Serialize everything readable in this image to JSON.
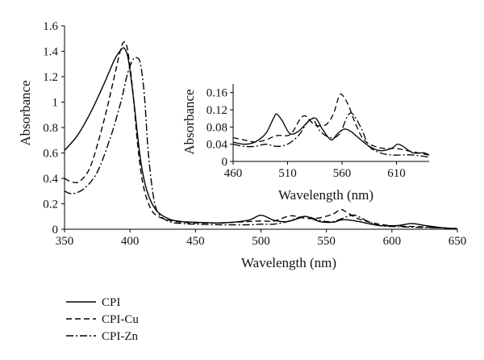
{
  "chart_data": [
    {
      "id": "main",
      "type": "line",
      "xlabel": "Wavelength (nm)",
      "ylabel": "Absorbance",
      "xlim": [
        350,
        650
      ],
      "ylim": [
        0,
        1.6
      ],
      "xticks": [
        350,
        400,
        450,
        500,
        550,
        600,
        650
      ],
      "yticks": [
        0,
        0.2,
        0.4,
        0.6,
        0.8,
        1,
        1.2,
        1.4,
        1.6
      ],
      "grid": false,
      "series": [
        {
          "name": "CPI",
          "style": "solid",
          "color": "#000000",
          "x": [
            350,
            360,
            370,
            380,
            388,
            393,
            396,
            399,
            403,
            408,
            413,
            420,
            430,
            440,
            450,
            470,
            490,
            500,
            510,
            520,
            530,
            535,
            545,
            555,
            560,
            565,
            575,
            590,
            605,
            615,
            625,
            640,
            650
          ],
          "y": [
            0.62,
            0.74,
            0.92,
            1.14,
            1.33,
            1.41,
            1.42,
            1.32,
            1.0,
            0.55,
            0.3,
            0.15,
            0.08,
            0.06,
            0.055,
            0.05,
            0.07,
            0.11,
            0.07,
            0.06,
            0.09,
            0.1,
            0.06,
            0.055,
            0.07,
            0.075,
            0.06,
            0.03,
            0.03,
            0.045,
            0.03,
            0.01,
            0.005
          ]
        },
        {
          "name": "CPI-Cu",
          "style": "dashed",
          "color": "#000000",
          "x": [
            350,
            356,
            362,
            370,
            380,
            388,
            392,
            395,
            398,
            402,
            406,
            410,
            415,
            420,
            430,
            440,
            450,
            470,
            490,
            500,
            510,
            520,
            525,
            535,
            545,
            555,
            561,
            566,
            575,
            590,
            605,
            620,
            640,
            650
          ],
          "y": [
            0.4,
            0.37,
            0.38,
            0.5,
            0.85,
            1.2,
            1.38,
            1.47,
            1.42,
            1.1,
            0.65,
            0.35,
            0.18,
            0.11,
            0.07,
            0.055,
            0.05,
            0.05,
            0.06,
            0.065,
            0.065,
            0.1,
            0.105,
            0.085,
            0.09,
            0.12,
            0.155,
            0.13,
            0.08,
            0.04,
            0.025,
            0.02,
            0.01,
            0.005
          ]
        },
        {
          "name": "CPI-Zn",
          "style": "dashdot",
          "color": "#000000",
          "x": [
            350,
            356,
            365,
            375,
            385,
            393,
            398,
            402,
            405,
            408,
            411,
            414,
            418,
            422,
            430,
            440,
            450,
            470,
            490,
            500,
            510,
            520,
            533,
            545,
            555,
            566,
            572,
            580,
            590,
            605,
            620,
            640,
            650
          ],
          "y": [
            0.3,
            0.28,
            0.32,
            0.45,
            0.72,
            1.0,
            1.22,
            1.33,
            1.35,
            1.3,
            1.05,
            0.6,
            0.25,
            0.12,
            0.06,
            0.045,
            0.04,
            0.035,
            0.035,
            0.04,
            0.04,
            0.06,
            0.1,
            0.07,
            0.06,
            0.1,
            0.11,
            0.07,
            0.03,
            0.02,
            0.015,
            0.01,
            0.005
          ]
        }
      ]
    },
    {
      "id": "inset",
      "type": "line",
      "xlabel": "Wavelength (nm)",
      "ylabel": "Absorbance",
      "xlim": [
        460,
        640
      ],
      "ylim": [
        0,
        0.18
      ],
      "xticks": [
        460,
        510,
        560,
        610
      ],
      "yticks": [
        0,
        0.04,
        0.08,
        0.12,
        0.16
      ],
      "grid": false,
      "series": [
        {
          "name": "CPI",
          "style": "solid",
          "color": "#000000",
          "x": [
            460,
            470,
            480,
            490,
            497,
            500,
            505,
            512,
            520,
            530,
            536,
            542,
            550,
            556,
            562,
            568,
            575,
            585,
            595,
            605,
            611,
            616,
            625,
            635,
            640
          ],
          "y": [
            0.045,
            0.04,
            0.045,
            0.065,
            0.1,
            0.11,
            0.095,
            0.065,
            0.07,
            0.095,
            0.1,
            0.075,
            0.05,
            0.065,
            0.075,
            0.07,
            0.055,
            0.035,
            0.025,
            0.03,
            0.04,
            0.035,
            0.02,
            0.02,
            0.015
          ]
        },
        {
          "name": "CPI-Cu",
          "style": "dashed",
          "color": "#000000",
          "x": [
            460,
            470,
            480,
            490,
            500,
            510,
            515,
            522,
            527,
            535,
            545,
            552,
            557,
            560,
            566,
            572,
            580,
            590,
            600,
            610,
            620,
            630,
            640
          ],
          "y": [
            0.055,
            0.05,
            0.045,
            0.05,
            0.06,
            0.06,
            0.07,
            0.1,
            0.105,
            0.085,
            0.085,
            0.11,
            0.15,
            0.155,
            0.13,
            0.09,
            0.05,
            0.035,
            0.03,
            0.03,
            0.025,
            0.02,
            0.015
          ]
        },
        {
          "name": "CPI-Zn",
          "style": "dashdot",
          "color": "#000000",
          "x": [
            460,
            470,
            480,
            490,
            500,
            510,
            520,
            528,
            533,
            540,
            550,
            558,
            565,
            570,
            578,
            585,
            595,
            605,
            615,
            625,
            640
          ],
          "y": [
            0.04,
            0.035,
            0.035,
            0.04,
            0.035,
            0.04,
            0.06,
            0.09,
            0.1,
            0.07,
            0.055,
            0.065,
            0.105,
            0.11,
            0.075,
            0.035,
            0.02,
            0.015,
            0.015,
            0.015,
            0.01
          ]
        }
      ]
    }
  ],
  "legend": {
    "placement": "bottom-left",
    "items": [
      {
        "label": "CPI",
        "style": "solid"
      },
      {
        "label": "CPI-Cu",
        "style": "dashed"
      },
      {
        "label": "CPI-Zn",
        "style": "dashdot"
      }
    ]
  }
}
